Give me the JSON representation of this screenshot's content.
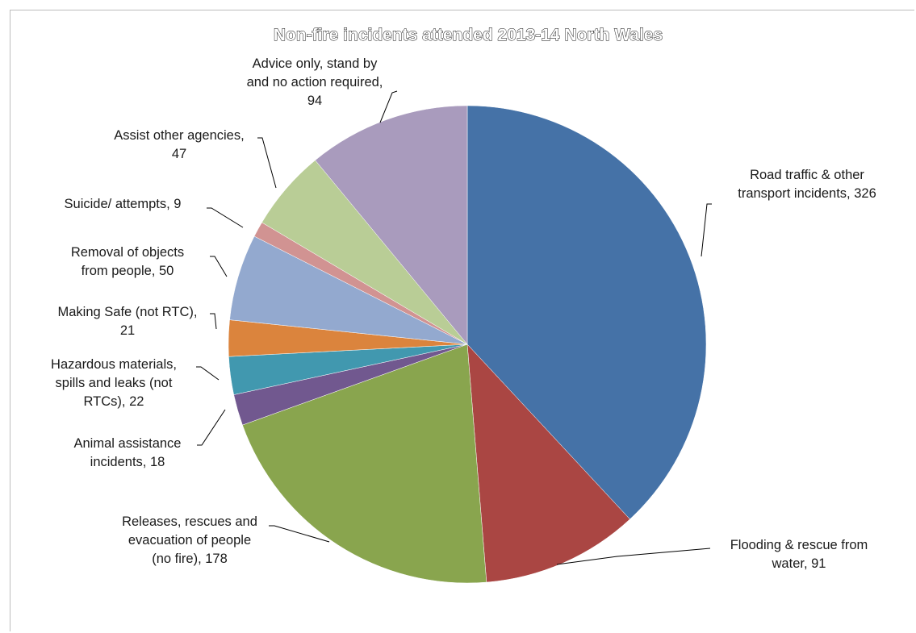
{
  "chart_data": {
    "type": "pie",
    "title": "Non-fire incidents attended 2013-14 North Wales",
    "slices": [
      {
        "label_lines": [
          "Road traffic & other",
          "transport incidents, 326"
        ],
        "category": "Road traffic & other transport incidents",
        "value": 326,
        "color": "#4572a7"
      },
      {
        "label_lines": [
          "Flooding & rescue from",
          "water, 91"
        ],
        "category": "Flooding & rescue from water",
        "value": 91,
        "color": "#aa4643"
      },
      {
        "label_lines": [
          "Releases, rescues and",
          "evacuation of people",
          "(no fire), 178"
        ],
        "category": "Releases, rescues and evacuation of people (no fire)",
        "value": 178,
        "color": "#89a54e"
      },
      {
        "label_lines": [
          "Animal assistance",
          "incidents, 18"
        ],
        "category": "Animal assistance incidents",
        "value": 18,
        "color": "#71588f"
      },
      {
        "label_lines": [
          "Hazardous materials,",
          "spills and leaks (not",
          "RTCs), 22"
        ],
        "category": "Hazardous materials, spills and leaks (not RTCs)",
        "value": 22,
        "color": "#4198af"
      },
      {
        "label_lines": [
          "Making Safe (not RTC),",
          "21"
        ],
        "category": "Making Safe (not RTC)",
        "value": 21,
        "color": "#db843d"
      },
      {
        "label_lines": [
          "Removal of objects",
          "from people, 50"
        ],
        "category": "Removal of objects from people",
        "value": 50,
        "color": "#93a9cf"
      },
      {
        "label_lines": [
          "Suicide/ attempts, 9"
        ],
        "category": "Suicide/ attempts",
        "value": 9,
        "color": "#d19392"
      },
      {
        "label_lines": [
          "Assist other agencies,",
          "47"
        ],
        "category": "Assist other agencies",
        "value": 47,
        "color": "#b9cd96"
      },
      {
        "label_lines": [
          "Advice only, stand by",
          "and no action required,",
          "94"
        ],
        "category": "Advice only, stand by and no action required",
        "value": 94,
        "color": "#a99bbd"
      }
    ]
  }
}
